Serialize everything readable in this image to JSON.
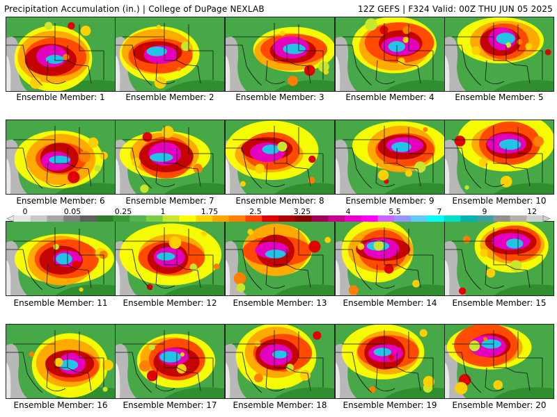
{
  "header": {
    "left": "Precipitation Accumulation (in.) | College of DuPage NEXLAB",
    "right": "12Z GEFS | F324 Valid: 00Z THU JUN 05 2025"
  },
  "caption_prefix": "Ensemble Member: ",
  "members": [
    "1",
    "2",
    "3",
    "4",
    "5",
    "6",
    "7",
    "8",
    "9",
    "10",
    "11",
    "12",
    "13",
    "14",
    "15",
    "16",
    "17",
    "18",
    "19",
    "20"
  ],
  "colorbar": {
    "labels": [
      "0",
      "0.05",
      "0.25",
      "1",
      "1.75",
      "2.5",
      "3.25",
      "4",
      "5.5",
      "7",
      "9",
      "12"
    ],
    "colors": [
      "#e6e6e6",
      "#c8c8c8",
      "#a6a6a6",
      "#808080",
      "#5f5f5f",
      "#2e7d2e",
      "#3a9a3a",
      "#52b552",
      "#7ccd3f",
      "#c8e62d",
      "#ffff00",
      "#ffd000",
      "#ffa500",
      "#ff7f00",
      "#ff4500",
      "#e00000",
      "#b00000",
      "#8b0000",
      "#a0005a",
      "#c8008c",
      "#e600c8",
      "#ff00ff",
      "#c864ff",
      "#9696ff",
      "#64c8ff",
      "#00ffff",
      "#00e0c8",
      "#00b4b4",
      "#40a0a0",
      "#909090",
      "#b0b0b0",
      "#d0d0d0"
    ]
  }
}
